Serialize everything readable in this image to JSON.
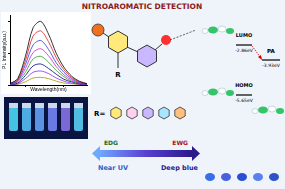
{
  "title": "NITROAROMATIC DETECTION",
  "chart_data": {
    "type": "line",
    "x_label": "Wavelength(nm)",
    "y_label": "PL Intensity(a.u.)",
    "x": [
      360,
      380,
      400,
      420,
      440,
      460,
      480,
      500,
      520,
      540,
      560
    ],
    "series": [
      {
        "color": "#000000",
        "values": [
          2,
          10,
          45,
          90,
          100,
          80,
          50,
          28,
          14,
          6,
          2
        ]
      },
      {
        "color": "#e41a1c",
        "values": [
          2,
          9,
          38,
          77,
          85,
          68,
          43,
          24,
          12,
          5,
          2
        ]
      },
      {
        "color": "#1f3fd6",
        "values": [
          1,
          7,
          32,
          63,
          70,
          56,
          35,
          20,
          10,
          4,
          1
        ]
      },
      {
        "color": "#d81bd8",
        "values": [
          1,
          6,
          26,
          51,
          57,
          46,
          29,
          16,
          8,
          3,
          1
        ]
      },
      {
        "color": "#2ca02c",
        "values": [
          1,
          5,
          20,
          41,
          45,
          36,
          23,
          13,
          6,
          3,
          1
        ]
      },
      {
        "color": "#000080",
        "values": [
          1,
          3,
          15,
          30,
          33,
          26,
          17,
          9,
          5,
          2,
          1
        ]
      },
      {
        "color": "#8a2be2",
        "values": [
          0,
          2,
          10,
          20,
          22,
          18,
          11,
          6,
          3,
          1,
          0
        ]
      },
      {
        "color": "#9a9a00",
        "values": [
          0,
          1,
          5,
          11,
          12,
          10,
          6,
          3,
          2,
          1,
          0
        ]
      }
    ],
    "xlim": [
      360,
      560
    ],
    "xticks": [
      400,
      500
    ],
    "ylim": [
      0,
      110
    ],
    "yticks": [
      0,
      50,
      100
    ],
    "tick_labels": false,
    "grid": false
  },
  "structure": {
    "substituent_label": "R",
    "r_label": "R=",
    "gradient": {
      "left": "EDG",
      "right": "EWG"
    },
    "emission": {
      "left": "Near UV",
      "right": "Deep blue"
    }
  },
  "orbitals": {
    "levels": [
      {
        "name": "LUMO",
        "energy": "-2.86eV"
      },
      {
        "name": "HOMO",
        "energy": "-5.65eV"
      }
    ],
    "analyte": {
      "name": "PA",
      "energy": "-3.93eV"
    }
  }
}
